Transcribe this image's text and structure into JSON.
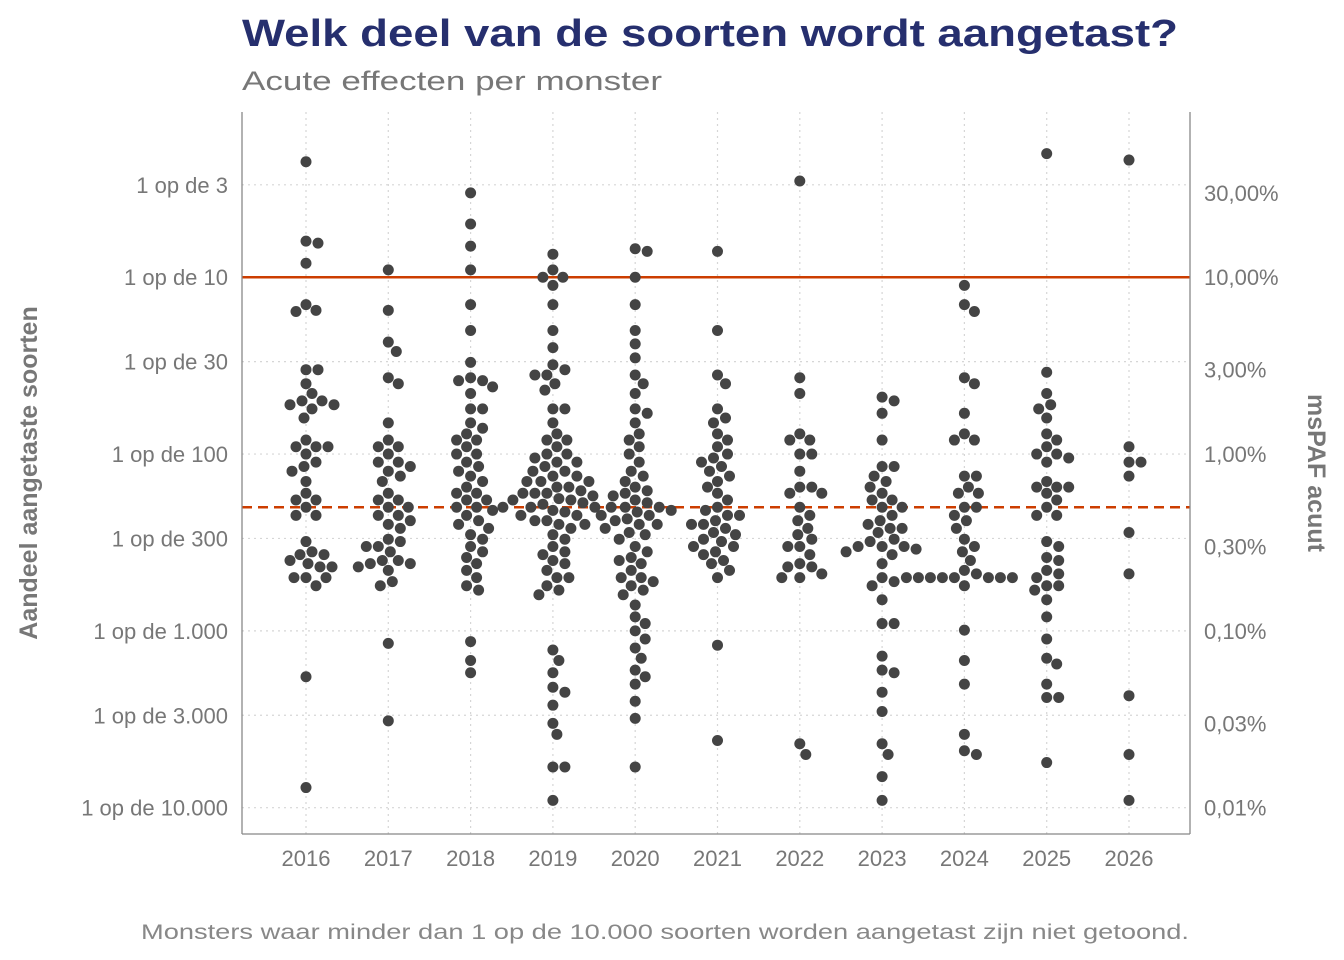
{
  "chart_data": {
    "type": "scatter",
    "subtype": "beeswarm",
    "title": "Welk deel van de soorten wordt aangetast?",
    "subtitle": "Acute effecten per monster",
    "xlabel": "",
    "ylabel_left": "Aandeel aangetaste soorten",
    "ylabel_right": "msPAF acuut",
    "footnote": "Monsters waar minder dan 1 op de 10.000 soorten worden aangetast zijn niet getoond.",
    "y_scale": "log",
    "y_unit": "percent",
    "ylim": [
      0.0071,
      86
    ],
    "grid": true,
    "colors": {
      "title": "#262f6e",
      "points": "#444444",
      "threshold": "#cc3d00"
    },
    "reference_lines": [
      {
        "value": 10,
        "style": "solid"
      },
      {
        "value": 0.5,
        "style": "dashed"
      }
    ],
    "left_ticks": [
      {
        "value": 33.33,
        "label": "1 op de 3"
      },
      {
        "value": 10,
        "label": "1 op de 10"
      },
      {
        "value": 3.333,
        "label": "1 op de 30"
      },
      {
        "value": 1,
        "label": "1 op de 100"
      },
      {
        "value": 0.3333,
        "label": "1 op de 300"
      },
      {
        "value": 0.1,
        "label": "1 op de 1.000"
      },
      {
        "value": 0.03333,
        "label": "1 op de 3.000"
      },
      {
        "value": 0.01,
        "label": "1 op de 10.000"
      }
    ],
    "right_ticks": [
      {
        "value": 30,
        "label": "30,00%"
      },
      {
        "value": 10,
        "label": "10,00%"
      },
      {
        "value": 3,
        "label": "3,00%"
      },
      {
        "value": 1,
        "label": "1,00%"
      },
      {
        "value": 0.3,
        "label": "0,30%"
      },
      {
        "value": 0.1,
        "label": "0,10%"
      },
      {
        "value": 0.03,
        "label": "0,03%"
      },
      {
        "value": 0.01,
        "label": "0,01%"
      }
    ],
    "categories": [
      "2016",
      "2017",
      "2018",
      "2019",
      "2020",
      "2021",
      "2022",
      "2023",
      "2024",
      "2025",
      "2026"
    ],
    "series": [
      {
        "name": "2016",
        "values": [
          45,
          16,
          15.6,
          12,
          7,
          6.5,
          6.4,
          3.0,
          3.0,
          2.5,
          2.2,
          2.0,
          2.0,
          1.9,
          1.9,
          1.8,
          1.6,
          1.2,
          1.1,
          1.1,
          1.1,
          1.0,
          0.9,
          0.85,
          0.8,
          0.7,
          0.6,
          0.55,
          0.55,
          0.5,
          0.45,
          0.45,
          0.32,
          0.28,
          0.27,
          0.27,
          0.25,
          0.24,
          0.23,
          0.23,
          0.2,
          0.2,
          0.2,
          0.18,
          0.055,
          0.013
        ]
      },
      {
        "name": "2017",
        "values": [
          11,
          6.5,
          4.3,
          3.8,
          2.7,
          2.5,
          1.5,
          1.2,
          1.1,
          1.1,
          1.0,
          0.9,
          0.9,
          0.85,
          0.8,
          0.75,
          0.7,
          0.6,
          0.55,
          0.55,
          0.5,
          0.5,
          0.45,
          0.45,
          0.42,
          0.4,
          0.38,
          0.33,
          0.32,
          0.3,
          0.3,
          0.28,
          0.25,
          0.25,
          0.24,
          0.24,
          0.23,
          0.22,
          0.19,
          0.18,
          0.085,
          0.031
        ]
      },
      {
        "name": "2018",
        "values": [
          30,
          20,
          15,
          11,
          7,
          5,
          3.3,
          2.7,
          2.6,
          2.6,
          2.4,
          2.2,
          1.8,
          1.8,
          1.5,
          1.4,
          1.3,
          1.2,
          1.2,
          1.1,
          1.0,
          1.0,
          0.9,
          0.85,
          0.8,
          0.75,
          0.7,
          0.65,
          0.6,
          0.6,
          0.55,
          0.55,
          0.5,
          0.5,
          0.48,
          0.45,
          0.42,
          0.4,
          0.38,
          0.35,
          0.33,
          0.3,
          0.28,
          0.26,
          0.24,
          0.22,
          0.2,
          0.18,
          0.17,
          0.087,
          0.068,
          0.058
        ]
      },
      {
        "name": "2019",
        "values": [
          13.5,
          11,
          10,
          10,
          9,
          7,
          5,
          4,
          3.2,
          3.0,
          2.8,
          2.8,
          2.5,
          2.3,
          1.8,
          1.8,
          1.5,
          1.3,
          1.2,
          1.2,
          1.1,
          1.0,
          1.0,
          0.95,
          0.9,
          0.9,
          0.85,
          0.8,
          0.8,
          0.75,
          0.75,
          0.7,
          0.7,
          0.7,
          0.65,
          0.65,
          0.62,
          0.6,
          0.6,
          0.6,
          0.58,
          0.56,
          0.55,
          0.55,
          0.53,
          0.52,
          0.5,
          0.5,
          0.5,
          0.48,
          0.47,
          0.45,
          0.45,
          0.42,
          0.42,
          0.4,
          0.4,
          0.38,
          0.35,
          0.33,
          0.3,
          0.28,
          0.27,
          0.25,
          0.24,
          0.22,
          0.2,
          0.2,
          0.18,
          0.17,
          0.16,
          0.078,
          0.068,
          0.058,
          0.048,
          0.045,
          0.038,
          0.03,
          0.026,
          0.017,
          0.017,
          0.011
        ]
      },
      {
        "name": "2020",
        "values": [
          14.5,
          14,
          10,
          7,
          5,
          4.2,
          3.5,
          2.8,
          2.5,
          2.2,
          1.8,
          1.7,
          1.5,
          1.3,
          1.2,
          1.1,
          1.0,
          0.9,
          0.8,
          0.75,
          0.7,
          0.65,
          0.62,
          0.6,
          0.58,
          0.55,
          0.53,
          0.5,
          0.5,
          0.5,
          0.48,
          0.47,
          0.45,
          0.45,
          0.43,
          0.42,
          0.4,
          0.4,
          0.38,
          0.36,
          0.35,
          0.33,
          0.3,
          0.28,
          0.26,
          0.25,
          0.24,
          0.22,
          0.2,
          0.2,
          0.19,
          0.18,
          0.17,
          0.16,
          0.14,
          0.12,
          0.11,
          0.1,
          0.09,
          0.08,
          0.07,
          0.06,
          0.055,
          0.05,
          0.04,
          0.032,
          0.017
        ]
      },
      {
        "name": "2021",
        "values": [
          14,
          5,
          2.8,
          2.5,
          1.8,
          1.6,
          1.5,
          1.3,
          1.2,
          1.1,
          1.0,
          0.95,
          0.9,
          0.85,
          0.8,
          0.75,
          0.7,
          0.65,
          0.6,
          0.55,
          0.5,
          0.48,
          0.45,
          0.45,
          0.42,
          0.4,
          0.4,
          0.38,
          0.36,
          0.35,
          0.33,
          0.32,
          0.3,
          0.3,
          0.28,
          0.27,
          0.25,
          0.24,
          0.22,
          0.2,
          0.083,
          0.024
        ]
      },
      {
        "name": "2022",
        "values": [
          35,
          2.7,
          2.2,
          1.3,
          1.2,
          1.2,
          1.0,
          1.0,
          0.8,
          0.65,
          0.65,
          0.6,
          0.6,
          0.5,
          0.45,
          0.42,
          0.38,
          0.35,
          0.33,
          0.3,
          0.3,
          0.27,
          0.24,
          0.23,
          0.23,
          0.21,
          0.2,
          0.2,
          0.023,
          0.02
        ]
      },
      {
        "name": "2023",
        "values": [
          2.1,
          2.0,
          1.7,
          1.2,
          0.85,
          0.85,
          0.75,
          0.7,
          0.65,
          0.6,
          0.55,
          0.55,
          0.5,
          0.5,
          0.45,
          0.42,
          0.4,
          0.38,
          0.38,
          0.36,
          0.33,
          0.32,
          0.3,
          0.3,
          0.3,
          0.29,
          0.28,
          0.27,
          0.24,
          0.2,
          0.19,
          0.18,
          0.15,
          0.11,
          0.11,
          0.072,
          0.06,
          0.058,
          0.045,
          0.035,
          0.023,
          0.02,
          0.015,
          0.011
        ]
      },
      {
        "name": "2024",
        "values": [
          9,
          7,
          6.4,
          2.7,
          2.5,
          1.7,
          1.3,
          1.2,
          1.2,
          0.75,
          0.75,
          0.65,
          0.6,
          0.6,
          0.5,
          0.5,
          0.45,
          0.42,
          0.38,
          0.33,
          0.3,
          0.28,
          0.25,
          0.22,
          0.2,
          0.2,
          0.2,
          0.2,
          0.2,
          0.2,
          0.2,
          0.2,
          0.21,
          0.18,
          0.101,
          0.068,
          0.05,
          0.026,
          0.021,
          0.02
        ]
      },
      {
        "name": "2025",
        "values": [
          50,
          2.9,
          2.2,
          1.9,
          1.8,
          1.6,
          1.3,
          1.2,
          1.1,
          1.0,
          1.0,
          0.95,
          0.9,
          0.7,
          0.65,
          0.65,
          0.65,
          0.6,
          0.55,
          0.5,
          0.45,
          0.45,
          0.32,
          0.3,
          0.26,
          0.25,
          0.22,
          0.21,
          0.2,
          0.18,
          0.18,
          0.17,
          0.15,
          0.12,
          0.09,
          0.07,
          0.065,
          0.05,
          0.042,
          0.042,
          0.018
        ]
      },
      {
        "name": "2026",
        "values": [
          46,
          1.1,
          0.9,
          0.9,
          0.75,
          0.36,
          0.21,
          0.043,
          0.02,
          0.011
        ]
      }
    ]
  }
}
